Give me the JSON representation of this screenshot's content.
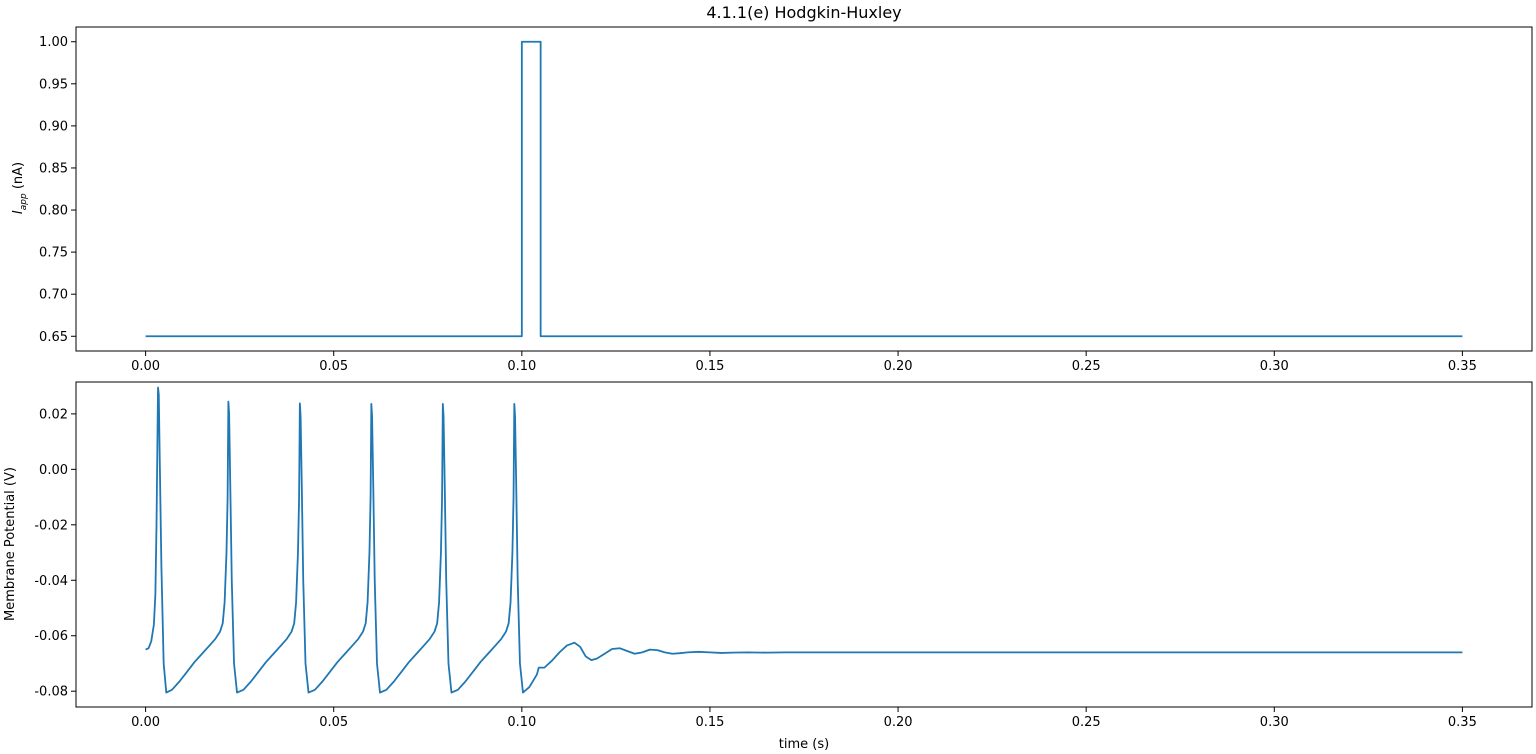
{
  "chart_data": [
    {
      "type": "line",
      "title": "4.1.1(e) Hodgkin-Huxley",
      "xlabel": "",
      "ylabel": "I_app (nA)",
      "ylabel_parts": {
        "symbol": "I",
        "subscript": "app",
        "unit": " (nA)"
      },
      "xlim": [
        -0.0185,
        0.3685
      ],
      "ylim": [
        0.6325,
        1.0175
      ],
      "grid": false,
      "xticks": [
        "0.00",
        "0.05",
        "0.10",
        "0.15",
        "0.20",
        "0.25",
        "0.30",
        "0.35"
      ],
      "yticks": [
        "0.65",
        "0.70",
        "0.75",
        "0.80",
        "0.85",
        "0.90",
        "0.95",
        "1.00"
      ],
      "color": "#1f77b4",
      "series": [
        {
          "x": [
            0.0,
            0.1,
            0.1,
            0.105,
            0.105,
            0.35
          ],
          "y": [
            0.65,
            0.65,
            1.0,
            1.0,
            0.65,
            0.65
          ]
        }
      ]
    },
    {
      "type": "line",
      "title": "",
      "xlabel": "time (s)",
      "ylabel": "Membrane Potential (V)",
      "xlim": [
        -0.0185,
        0.3685
      ],
      "ylim": [
        -0.0857,
        0.0315
      ],
      "grid": false,
      "xticks": [
        "0.00",
        "0.05",
        "0.10",
        "0.15",
        "0.20",
        "0.25",
        "0.30",
        "0.35"
      ],
      "yticks": [
        "-0.08",
        "-0.06",
        "-0.04",
        "-0.02",
        "0.00",
        "0.02"
      ],
      "color": "#1f77b4",
      "series": [
        {
          "x": [
            0.0,
            0.0008,
            0.0015,
            0.0022,
            0.0026,
            0.0029,
            0.0031,
            0.0033,
            0.0035,
            0.0038,
            0.0042,
            0.0048,
            0.0055,
            0.007,
            0.009,
            0.011,
            0.013,
            0.015,
            0.017,
            0.0185,
            0.0198,
            0.0205,
            0.021,
            0.0215,
            0.0218,
            0.022,
            0.0222,
            0.0225,
            0.0229,
            0.0235,
            0.0243,
            0.026,
            0.028,
            0.03,
            0.032,
            0.034,
            0.036,
            0.0375,
            0.0388,
            0.0395,
            0.04,
            0.0405,
            0.0408,
            0.041,
            0.0412,
            0.0415,
            0.0419,
            0.0425,
            0.0433,
            0.045,
            0.047,
            0.049,
            0.051,
            0.053,
            0.055,
            0.0565,
            0.0578,
            0.0585,
            0.059,
            0.0595,
            0.0598,
            0.06,
            0.0602,
            0.0605,
            0.0609,
            0.0615,
            0.0623,
            0.064,
            0.066,
            0.068,
            0.07,
            0.072,
            0.074,
            0.0755,
            0.0768,
            0.0775,
            0.078,
            0.0785,
            0.0788,
            0.079,
            0.0792,
            0.0795,
            0.0799,
            0.0805,
            0.0813,
            0.083,
            0.085,
            0.087,
            0.089,
            0.091,
            0.093,
            0.0945,
            0.0958,
            0.0965,
            0.097,
            0.0975,
            0.0978,
            0.098,
            0.0982,
            0.0985,
            0.0989,
            0.0995,
            0.1003,
            0.102,
            0.104,
            0.1045,
            0.106,
            0.108,
            0.11,
            0.112,
            0.114,
            0.1155,
            0.117,
            0.1185,
            0.12,
            0.122,
            0.124,
            0.126,
            0.128,
            0.13,
            0.132,
            0.134,
            0.136,
            0.138,
            0.14,
            0.142,
            0.144,
            0.147,
            0.15,
            0.153,
            0.156,
            0.16,
            0.165,
            0.17,
            0.18,
            0.2,
            0.25,
            0.3,
            0.35
          ],
          "y": [
            -0.065,
            -0.0645,
            -0.062,
            -0.056,
            -0.045,
            -0.02,
            0.005,
            0.0295,
            0.027,
            0.0,
            -0.035,
            -0.07,
            -0.0805,
            -0.0795,
            -0.0765,
            -0.073,
            -0.0695,
            -0.0665,
            -0.0635,
            -0.0612,
            -0.0585,
            -0.0555,
            -0.048,
            -0.03,
            -0.01,
            0.0244,
            0.02,
            -0.005,
            -0.04,
            -0.07,
            -0.0805,
            -0.0795,
            -0.0765,
            -0.073,
            -0.0695,
            -0.0665,
            -0.0635,
            -0.0612,
            -0.0585,
            -0.0555,
            -0.048,
            -0.03,
            -0.01,
            0.0238,
            0.019,
            -0.005,
            -0.04,
            -0.07,
            -0.0805,
            -0.0795,
            -0.0765,
            -0.073,
            -0.0695,
            -0.0665,
            -0.0635,
            -0.0612,
            -0.0585,
            -0.0555,
            -0.048,
            -0.03,
            -0.01,
            0.0236,
            0.019,
            -0.005,
            -0.04,
            -0.07,
            -0.0805,
            -0.0795,
            -0.0765,
            -0.073,
            -0.0695,
            -0.0665,
            -0.0635,
            -0.0612,
            -0.0585,
            -0.0555,
            -0.048,
            -0.03,
            -0.01,
            0.0236,
            0.019,
            -0.005,
            -0.04,
            -0.07,
            -0.0805,
            -0.0795,
            -0.0765,
            -0.073,
            -0.0695,
            -0.0665,
            -0.0635,
            -0.0612,
            -0.0585,
            -0.0555,
            -0.048,
            -0.03,
            -0.01,
            0.0236,
            0.019,
            -0.005,
            -0.04,
            -0.07,
            -0.0805,
            -0.0785,
            -0.074,
            -0.0715,
            -0.0715,
            -0.069,
            -0.066,
            -0.0635,
            -0.0625,
            -0.064,
            -0.0675,
            -0.0688,
            -0.0682,
            -0.0665,
            -0.0648,
            -0.0645,
            -0.0655,
            -0.0665,
            -0.066,
            -0.065,
            -0.0652,
            -0.066,
            -0.0665,
            -0.0663,
            -0.066,
            -0.0658,
            -0.066,
            -0.0662,
            -0.0661,
            -0.066,
            -0.0661,
            -0.066,
            -0.066,
            -0.066,
            -0.066,
            -0.066,
            -0.066
          ]
        }
      ]
    }
  ]
}
